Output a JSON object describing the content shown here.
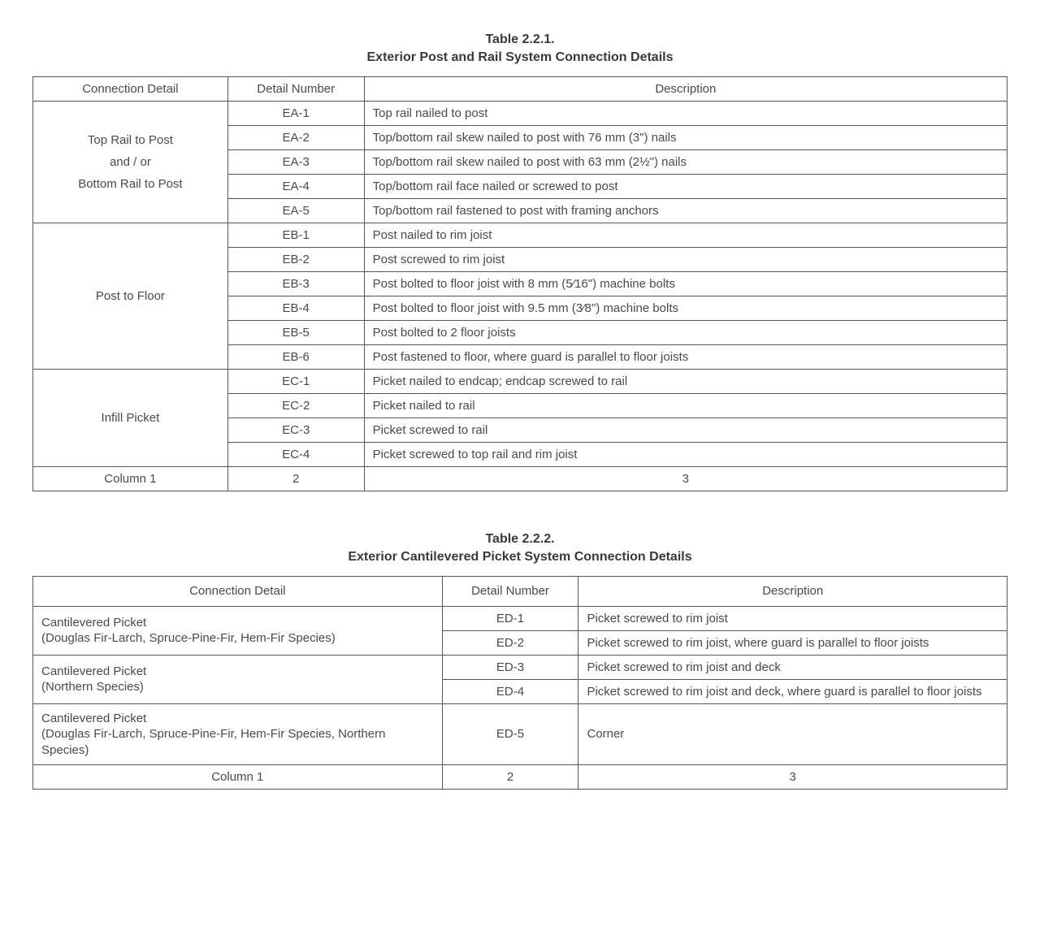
{
  "table1": {
    "title": "Table 2.2.1.",
    "subtitle": "Exterior Post and Rail System Connection Details",
    "headers": {
      "conn": "Connection Detail",
      "detail": "Detail Number",
      "desc": "Description"
    },
    "groups": [
      {
        "label_lines": [
          "Top Rail to Post",
          "and / or",
          "Bottom Rail to Post"
        ],
        "rows": [
          {
            "detail": "EA-1",
            "desc": "Top rail nailed to post"
          },
          {
            "detail": "EA-2",
            "desc": "Top/bottom rail skew nailed to post with 76 mm (3\") nails"
          },
          {
            "detail": "EA-3",
            "desc": "Top/bottom rail skew nailed to post with 63 mm (2½\") nails"
          },
          {
            "detail": "EA-4",
            "desc": "Top/bottom rail face nailed or screwed to post"
          },
          {
            "detail": "EA-5",
            "desc": "Top/bottom rail fastened to post with framing anchors"
          }
        ]
      },
      {
        "label_lines": [
          "Post to Floor"
        ],
        "rows": [
          {
            "detail": "EB-1",
            "desc": "Post nailed to rim joist"
          },
          {
            "detail": "EB-2",
            "desc": "Post screwed to rim joist"
          },
          {
            "detail": "EB-3",
            "desc": "Post bolted to floor joist with 8 mm (5⁄16\") machine bolts"
          },
          {
            "detail": "EB-4",
            "desc": "Post bolted to floor joist with 9.5 mm (3⁄8\") machine bolts"
          },
          {
            "detail": "EB-5",
            "desc": "Post bolted to 2 floor joists"
          },
          {
            "detail": "EB-6",
            "desc": "Post fastened to floor, where guard is parallel to floor joists"
          }
        ]
      },
      {
        "label_lines": [
          "Infill Picket"
        ],
        "rows": [
          {
            "detail": "EC-1",
            "desc": "Picket nailed to endcap; endcap screwed to rail"
          },
          {
            "detail": "EC-2",
            "desc": "Picket nailed to rail"
          },
          {
            "detail": "EC-3",
            "desc": "Picket screwed to rail"
          },
          {
            "detail": "EC-4",
            "desc": "Picket screwed to top rail and rim joist"
          }
        ]
      }
    ],
    "footer": {
      "c1": "Column 1",
      "c2": "2",
      "c3": "3"
    }
  },
  "table2": {
    "title": "Table 2.2.2.",
    "subtitle": "Exterior Cantilevered Picket System Connection Details",
    "headers": {
      "conn": "Connection Detail",
      "detail": "Detail Number",
      "desc": "Description"
    },
    "groups": [
      {
        "label_lines": [
          "Cantilevered Picket",
          "(Douglas Fir-Larch, Spruce-Pine-Fir, Hem-Fir Species)"
        ],
        "rows": [
          {
            "detail": "ED-1",
            "desc": "Picket screwed to rim joist"
          },
          {
            "detail": "ED-2",
            "desc": "Picket screwed to rim joist, where guard is parallel to floor joists"
          }
        ]
      },
      {
        "label_lines": [
          "Cantilevered Picket",
          "(Northern Species)"
        ],
        "rows": [
          {
            "detail": "ED-3",
            "desc": "Picket screwed to rim joist and deck"
          },
          {
            "detail": "ED-4",
            "desc": "Picket screwed to rim joist and deck, where guard is parallel to floor joists"
          }
        ]
      },
      {
        "label_lines": [
          "Cantilevered Picket",
          "(Douglas Fir-Larch, Spruce-Pine-Fir, Hem-Fir Species, Northern Species)"
        ],
        "rows": [
          {
            "detail": "ED-5",
            "desc": "Corner"
          }
        ]
      }
    ],
    "footer": {
      "c1": "Column 1",
      "c2": "2",
      "c3": "3"
    }
  }
}
